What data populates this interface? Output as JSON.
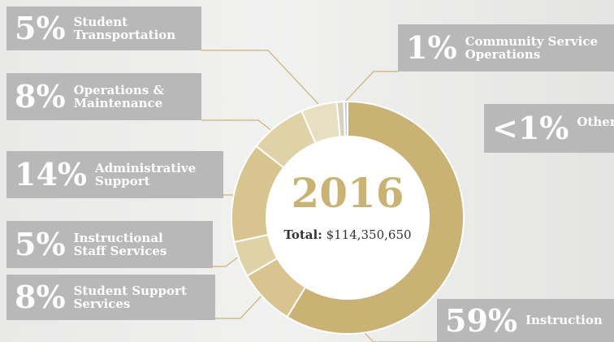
{
  "chart_data": {
    "type": "donut",
    "year": "2016",
    "total_label": "Total:",
    "total": "$114,350,650",
    "categories": [
      "Instruction",
      "Student Support Services",
      "Instructional Staff Services",
      "Administrative Support",
      "Operations & Maintenance",
      "Student Transportation",
      "Community Service Operations",
      "Other"
    ],
    "values": [
      59,
      8,
      5,
      14,
      8,
      5,
      1,
      0.5
    ],
    "value_labels": [
      "59%",
      "8%",
      "5%",
      "14%",
      "8%",
      "5%",
      "1%",
      "<1%"
    ],
    "colors": [
      "#c9b273",
      "#d8c48e",
      "#e0d2a7",
      "#d8c48e",
      "#e0d2a7",
      "#e8dfc3",
      "#d8d1bd",
      "#cfcfcf"
    ]
  }
}
